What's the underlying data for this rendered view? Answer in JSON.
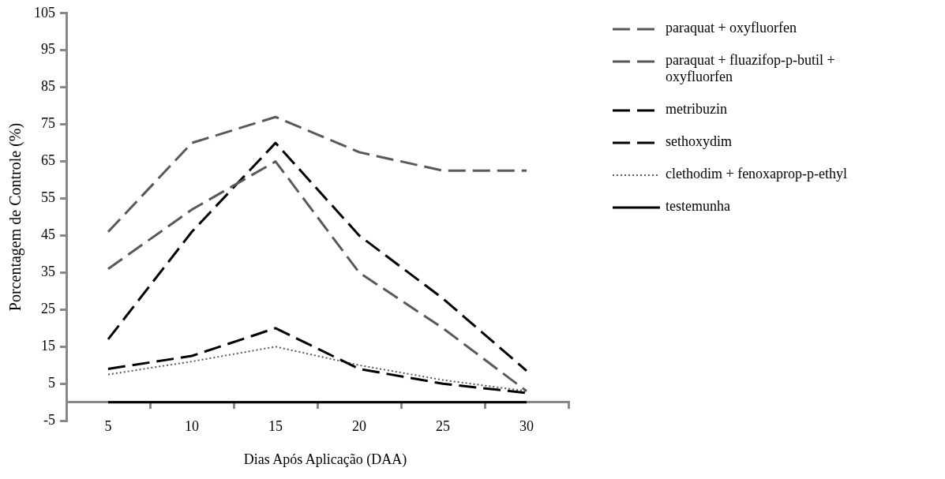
{
  "chart_data": {
    "type": "line",
    "xlabel": "Dias Após Aplicação (DAA)",
    "ylabel": "Porcentagem de Controle (%)",
    "categories": [
      "5",
      "10",
      "15",
      "20",
      "25",
      "30"
    ],
    "ylim": [
      -5,
      105
    ],
    "yticks": [
      -5,
      5,
      15,
      25,
      35,
      45,
      55,
      65,
      75,
      85,
      95,
      105
    ],
    "grid": false,
    "legend": "right",
    "marker": "none",
    "series": [
      {
        "name": "paraquat + oxyfluorfen",
        "color": "#595959",
        "line_style": "dashed",
        "values": [
          46,
          70,
          77,
          67.5,
          62.5,
          62.5
        ]
      },
      {
        "name": "paraquat + fluazifop-p-butil + oxyfluorfen",
        "color": "#595959",
        "line_style": "dashed",
        "values": [
          36,
          52,
          65,
          35,
          20,
          3
        ]
      },
      {
        "name": "metribuzin",
        "color": "#000000",
        "line_style": "dashed",
        "values": [
          17,
          46,
          70,
          45,
          28,
          8.5
        ]
      },
      {
        "name": "sethoxydim",
        "color": "#000000",
        "line_style": "dashed",
        "values": [
          9,
          12.5,
          20,
          9,
          5,
          2.5
        ]
      },
      {
        "name": "clethodim + fenoxaprop-p-ethyl",
        "color": "#595959",
        "line_style": "dotted",
        "values": [
          7.5,
          11,
          15,
          10,
          6,
          3
        ]
      },
      {
        "name": "testemunha",
        "color": "#000000",
        "line_style": "solid",
        "values": [
          0,
          0,
          0,
          0,
          0,
          0
        ]
      }
    ]
  }
}
